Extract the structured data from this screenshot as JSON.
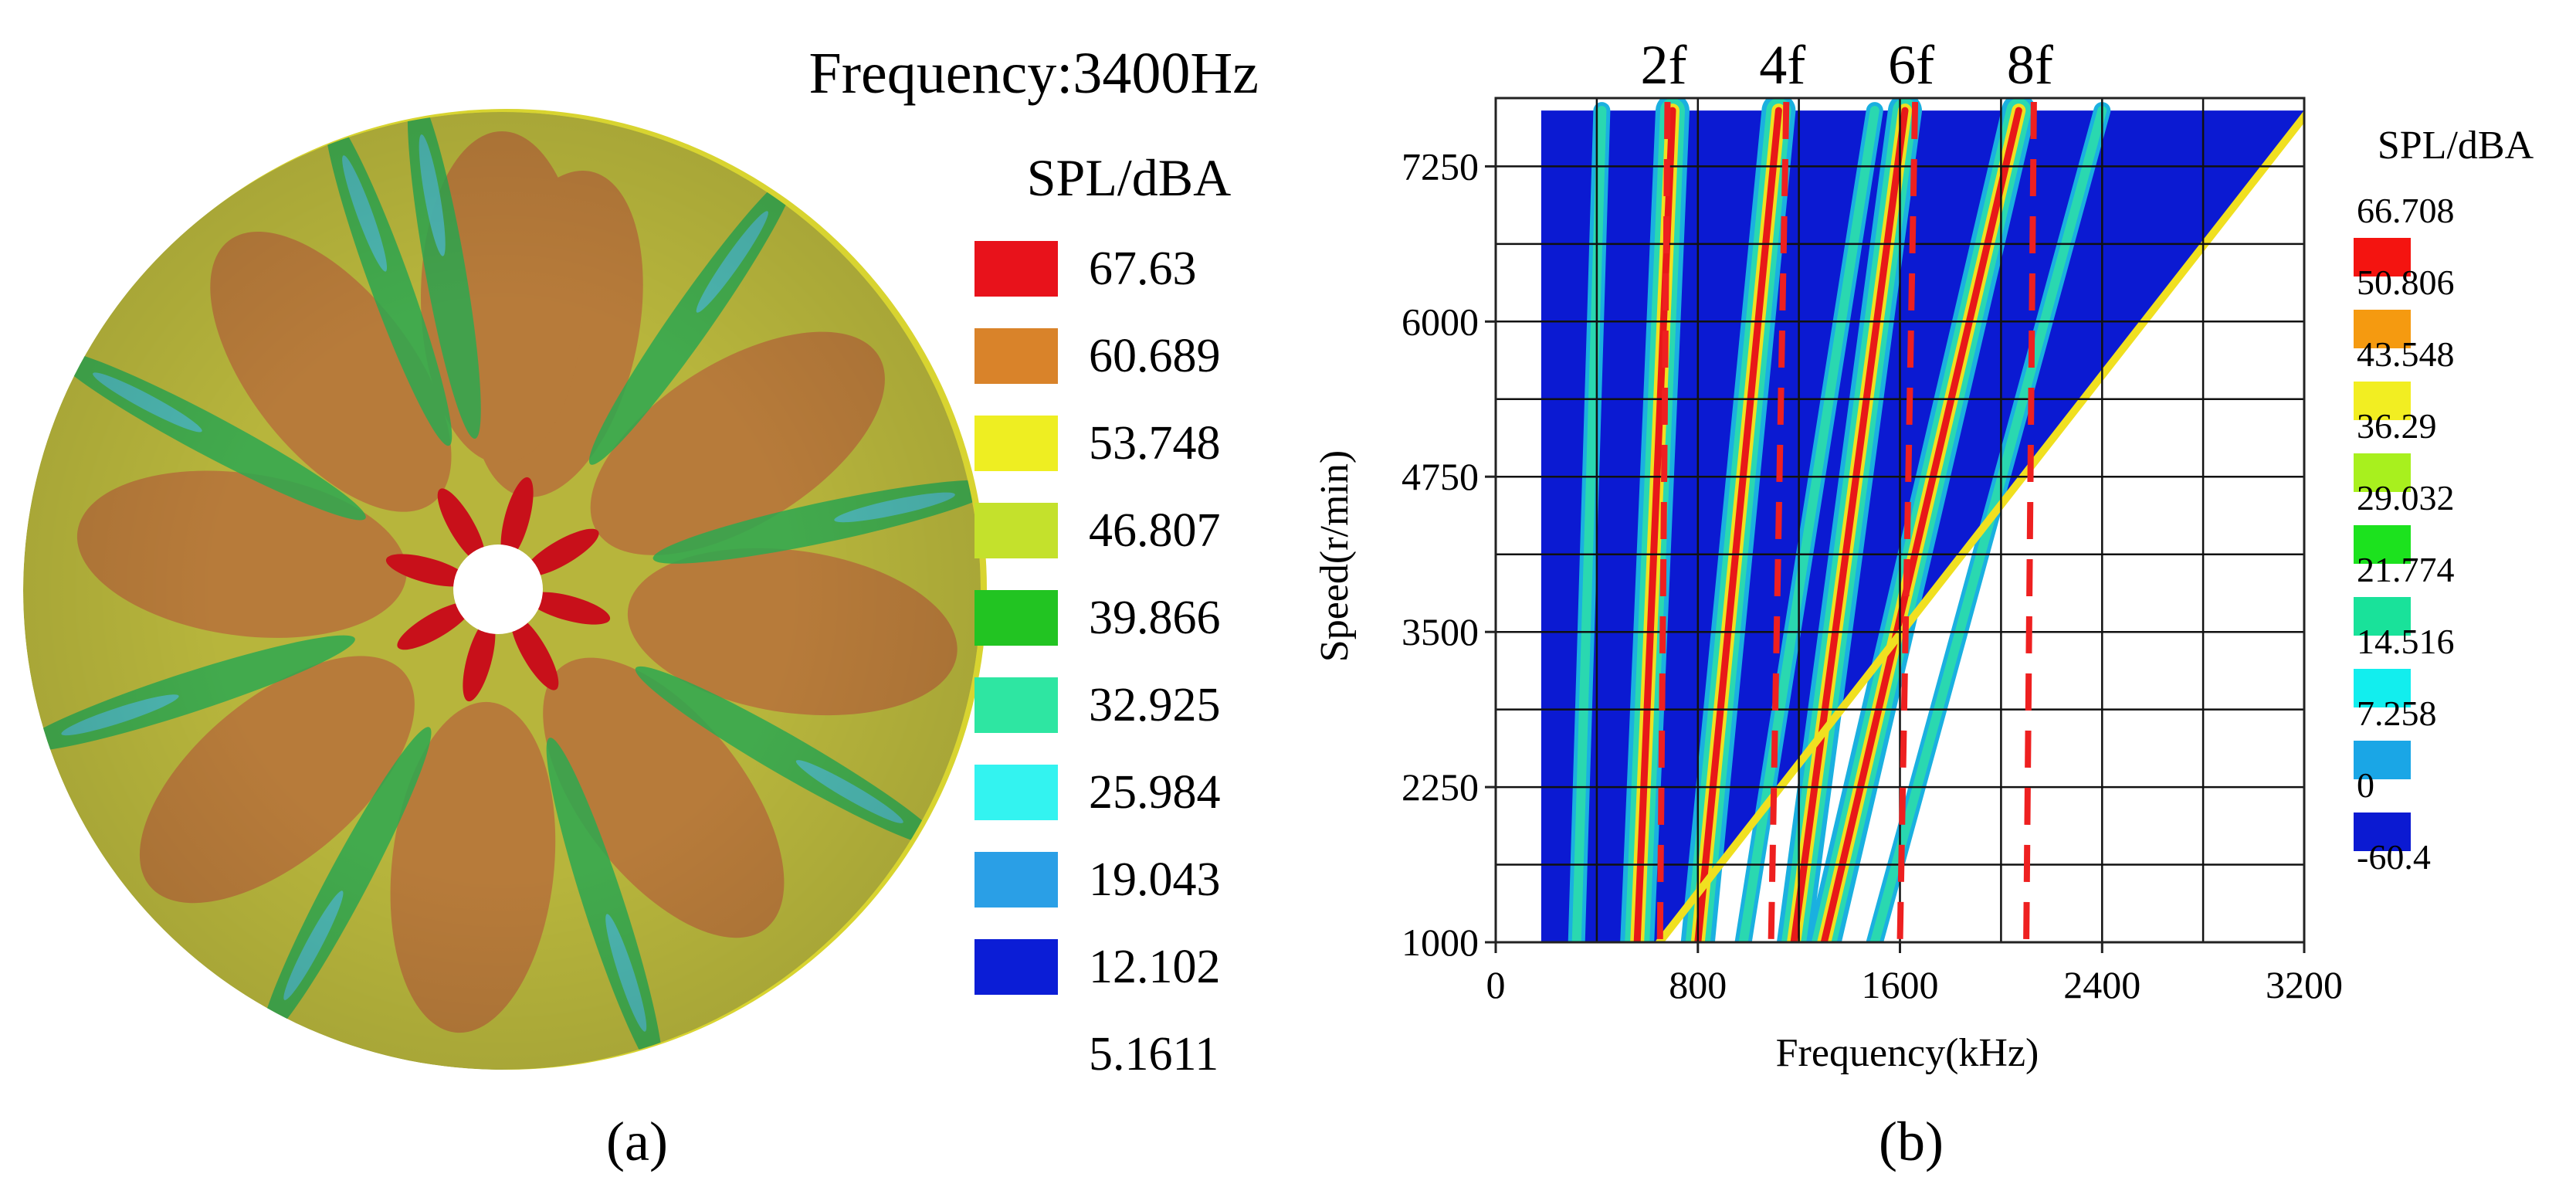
{
  "chart_data": [
    {
      "type": "heatmap",
      "panel_label": "(a)",
      "title": "Frequency:3400Hz",
      "legend_title": "SPL/dBA",
      "legend_values": [
        "67.63",
        "60.689",
        "53.748",
        "46.807",
        "39.866",
        "32.925",
        "25.984",
        "19.043",
        "12.102",
        "5.1611"
      ],
      "legend_colors": [
        "#e8121b",
        "#d9832a",
        "#eeee22",
        "#c4e12c",
        "#22c422",
        "#2ee6a2",
        "#33f3f0",
        "#2a9fe6",
        "#0b1dd6"
      ],
      "description_colors": {
        "disc_base": "#b7b53c",
        "lobes": "#b77b3a",
        "hub": "#c8101a",
        "streaks": "#2ea850",
        "streak_core": "#4fb8c8"
      }
    },
    {
      "type": "heatmap",
      "panel_label": "(b)",
      "xlabel": "Frequency(kHz)",
      "ylabel": "Speed(r/min)",
      "x_ticks": [
        "0",
        "800",
        "1600",
        "2400",
        "3200"
      ],
      "y_ticks": [
        "1000",
        "2250",
        "3500",
        "4750",
        "6000",
        "7250"
      ],
      "xlim": [
        0,
        3200
      ],
      "ylim": [
        1000,
        7800
      ],
      "order_labels": [
        "2f",
        "4f",
        "6f",
        "8f"
      ],
      "order_line_top_x": [
        680,
        1150,
        1660,
        2130
      ],
      "order_line_bottom_x": [
        650,
        1090,
        1600,
        2100
      ],
      "order_slopes": [
        0.078,
        0.152,
        0.22,
        0.285,
        0.35,
        0.42
      ],
      "legend_title": "SPL/dBA",
      "legend_values": [
        "66.708",
        "50.806",
        "43.548",
        "36.29",
        "29.032",
        "21.774",
        "14.516",
        "7.258",
        "0",
        "-60.4"
      ],
      "legend_colors": [
        "#f41410",
        "#f59a10",
        "#f2ee22",
        "#a8f01e",
        "#1ce21e",
        "#19e29a",
        "#12eeee",
        "#1aa6e6",
        "#0b1ad2"
      ],
      "colors": {
        "background": "#0b1ad2",
        "order_main": "#e81818",
        "order_mid": "#f0e020",
        "order_outer": "#2ad8b0",
        "order_edge": "#1ab0e0",
        "order_line": "#ee2020"
      }
    }
  ]
}
